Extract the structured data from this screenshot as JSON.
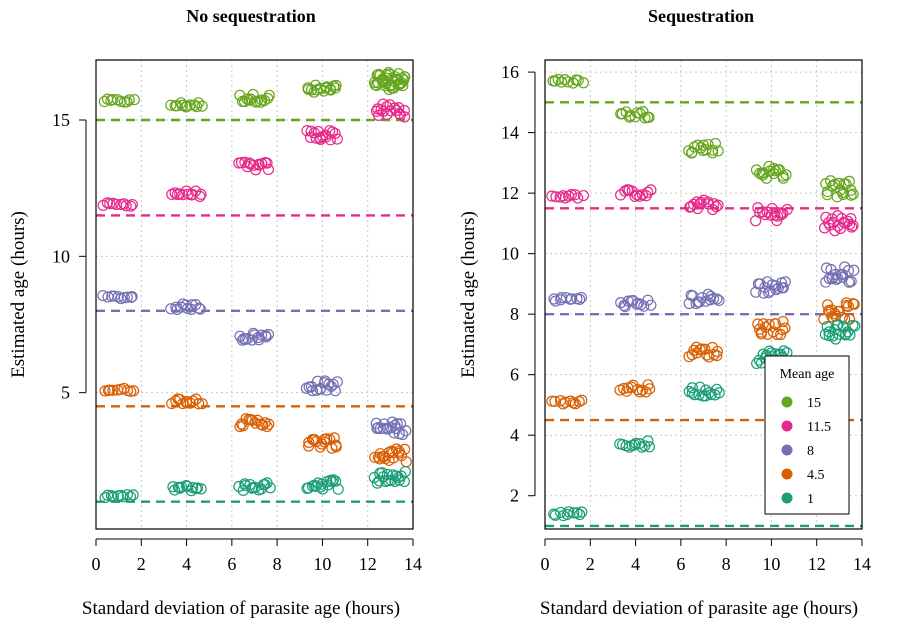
{
  "chart_data": [
    {
      "type": "scatter",
      "title": "No sequestration",
      "xlabel": "Standard deviation of parasite age (hours)",
      "ylabel": "Estimated age (hours)",
      "xlim": [
        0,
        14
      ],
      "ylim": [
        0,
        17.2
      ],
      "xticks": [
        0,
        2,
        4,
        6,
        8,
        10,
        12,
        14
      ],
      "yticks": [
        5,
        10,
        15
      ],
      "grid": true,
      "reference_lines": [
        {
          "series": "15",
          "y": 15
        },
        {
          "series": "11.5",
          "y": 11.5
        },
        {
          "series": "8",
          "y": 8
        },
        {
          "series": "4.5",
          "y": 4.5
        },
        {
          "series": "1",
          "y": 1
        }
      ],
      "series": [
        {
          "name": "15",
          "color": "#66a61e",
          "points": [
            [
              1,
              15.7
            ],
            [
              4,
              15.55
            ],
            [
              7,
              15.8
            ],
            [
              10,
              16.1
            ],
            [
              13,
              16.5
            ],
            [
              13,
              16.35
            ]
          ]
        },
        {
          "name": "11.5",
          "color": "#e7298a",
          "points": [
            [
              1,
              11.9
            ],
            [
              4,
              12.3
            ],
            [
              7,
              13.3
            ],
            [
              10,
              14.45
            ],
            [
              13,
              15.35
            ]
          ]
        },
        {
          "name": "8",
          "color": "#7570b3",
          "points": [
            [
              1,
              8.5
            ],
            [
              4,
              8.15
            ],
            [
              7,
              7.05
            ],
            [
              10,
              5.25
            ],
            [
              13,
              3.7
            ]
          ]
        },
        {
          "name": "4.5",
          "color": "#d95f02",
          "points": [
            [
              1,
              5.1
            ],
            [
              4,
              4.7
            ],
            [
              7,
              3.9
            ],
            [
              10,
              3.15
            ],
            [
              13,
              2.7
            ]
          ]
        },
        {
          "name": "1",
          "color": "#1b9e77",
          "points": [
            [
              1,
              1.2
            ],
            [
              4,
              1.5
            ],
            [
              7,
              1.55
            ],
            [
              10,
              1.65
            ],
            [
              13,
              1.9
            ]
          ]
        }
      ]
    },
    {
      "type": "scatter",
      "title": "Sequestration",
      "xlabel": "Standard deviation of parasite age (hours)",
      "ylabel": "Estimated age (hours)",
      "xlim": [
        0,
        14
      ],
      "ylim": [
        0.9,
        16.4
      ],
      "xticks": [
        0,
        2,
        4,
        6,
        8,
        10,
        12,
        14
      ],
      "yticks": [
        2,
        4,
        6,
        8,
        10,
        12,
        14,
        16
      ],
      "grid": true,
      "reference_lines": [
        {
          "series": "15",
          "y": 15
        },
        {
          "series": "11.5",
          "y": 11.5
        },
        {
          "series": "8",
          "y": 8
        },
        {
          "series": "4.5",
          "y": 4.5
        },
        {
          "series": "1",
          "y": 1
        }
      ],
      "series": [
        {
          "name": "15",
          "color": "#66a61e",
          "points": [
            [
              1,
              15.7
            ],
            [
              4,
              14.6
            ],
            [
              7,
              13.5
            ],
            [
              10,
              12.7
            ],
            [
              13,
              12.15
            ]
          ]
        },
        {
          "name": "11.5",
          "color": "#e7298a",
          "points": [
            [
              1,
              11.9
            ],
            [
              4,
              12.0
            ],
            [
              7,
              11.6
            ],
            [
              10,
              11.3
            ],
            [
              13,
              11.0
            ]
          ]
        },
        {
          "name": "8",
          "color": "#7570b3",
          "points": [
            [
              1,
              8.5
            ],
            [
              4,
              8.35
            ],
            [
              7,
              8.5
            ],
            [
              10,
              8.9
            ],
            [
              13,
              9.3
            ]
          ]
        },
        {
          "name": "4.5",
          "color": "#d95f02",
          "points": [
            [
              1,
              5.1
            ],
            [
              4,
              5.55
            ],
            [
              7,
              6.75
            ],
            [
              10,
              7.55
            ],
            [
              13,
              8.1
            ]
          ]
        },
        {
          "name": "1",
          "color": "#1b9e77",
          "points": [
            [
              1,
              1.4
            ],
            [
              4,
              3.7
            ],
            [
              7,
              5.45
            ],
            [
              10,
              6.6
            ],
            [
              13,
              7.45
            ]
          ]
        }
      ],
      "legend": {
        "title": "Mean age",
        "position": "bottom-right",
        "entries": [
          {
            "label": "15",
            "color": "#66a61e"
          },
          {
            "label": "11.5",
            "color": "#e7298a"
          },
          {
            "label": "8",
            "color": "#7570b3"
          },
          {
            "label": "4.5",
            "color": "#d95f02"
          },
          {
            "label": "1",
            "color": "#1b9e77"
          }
        ]
      }
    }
  ]
}
